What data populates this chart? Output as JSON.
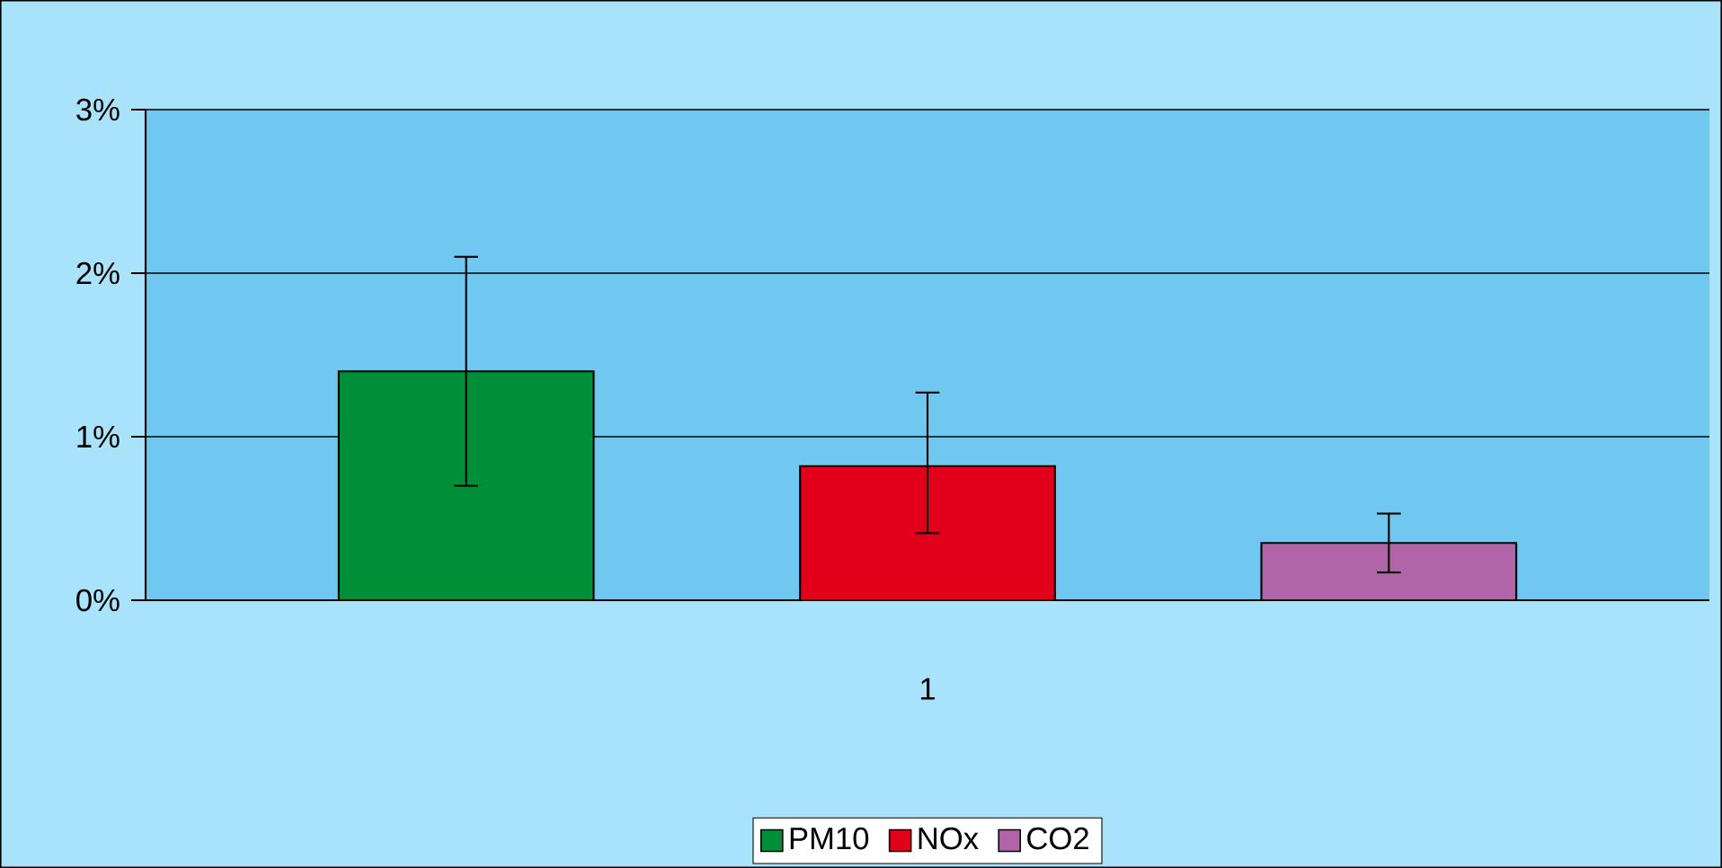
{
  "chart_data": {
    "type": "bar",
    "categories": [
      "1"
    ],
    "series": [
      {
        "name": "PM10",
        "color": "#008f39",
        "values": [
          1.4
        ],
        "errors": [
          0.7
        ]
      },
      {
        "name": "NOx",
        "color": "#e2001a",
        "values": [
          0.82
        ],
        "errors": [
          [
            0.41,
            1.27
          ]
        ]
      },
      {
        "name": "CO2",
        "color": "#b065a8",
        "values": [
          0.35
        ],
        "errors": [
          [
            0.17,
            0.53
          ]
        ]
      }
    ],
    "ylim": [
      0,
      3
    ],
    "yticks": [
      {
        "value": 0,
        "label": "0%"
      },
      {
        "value": 1,
        "label": "1%"
      },
      {
        "value": 2,
        "label": "2%"
      },
      {
        "value": 3,
        "label": "3%"
      }
    ],
    "grid": "y",
    "legend": "bottom"
  }
}
